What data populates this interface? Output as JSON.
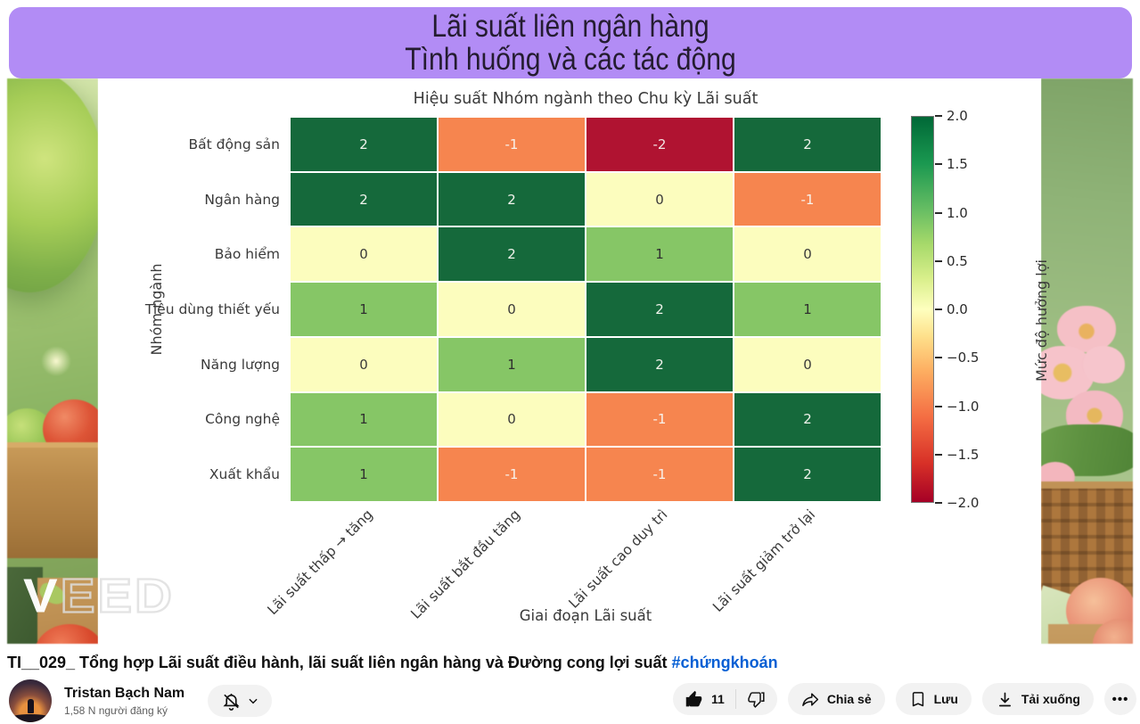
{
  "banner": {
    "line1": "Lãi suất liên ngân hàng",
    "line2": "Tình huống và các tác động",
    "bg_color": "#B28CF5"
  },
  "watermark": {
    "first": "V",
    "rest": "EED"
  },
  "chart_data": {
    "type": "heatmap",
    "title": "Hiệu suất Nhóm ngành theo Chu kỳ Lãi suất",
    "xlabel": "Giai đoạn Lãi suất",
    "ylabel": "Nhóm ngành",
    "rows": [
      "Bất động sản",
      "Ngân hàng",
      "Bảo hiểm",
      "Tiêu dùng thiết yếu",
      "Năng lượng",
      "Công nghệ",
      "Xuất khẩu"
    ],
    "columns": [
      "Lãi suất thấp → tăng",
      "Lãi suất bắt đầu tăng",
      "Lãi suất cao duy trì",
      "Lãi suất giảm trở lại"
    ],
    "values": [
      [
        2,
        -1,
        -2,
        2
      ],
      [
        2,
        2,
        0,
        -1
      ],
      [
        0,
        2,
        1,
        0
      ],
      [
        1,
        0,
        2,
        1
      ],
      [
        0,
        1,
        2,
        0
      ],
      [
        1,
        0,
        -1,
        2
      ],
      [
        1,
        -1,
        -1,
        2
      ]
    ],
    "colormap": "RdYlGn",
    "value_colors": {
      "2": "#15693B",
      "1": "#86C666",
      "0": "#FCFDBE",
      "-1": "#F6854F",
      "-2": "#B01331"
    },
    "value_text_colors": {
      "2": "#F0F3EC",
      "1": "#2F2F2F",
      "0": "#3A3A3A",
      "-1": "#F8F2EC",
      "-2": "#F2E2E2"
    },
    "colorbar": {
      "label": "Mức độ hưởng lợi",
      "min": -2.0,
      "max": 2.0,
      "ticks": [
        "2.0",
        "1.5",
        "1.0",
        "0.5",
        "0.0",
        "−0.5",
        "−1.0",
        "−1.5",
        "−2.0"
      ]
    }
  },
  "video": {
    "title_main": "TI__029_ Tổng hợp Lãi suất điều hành, lãi suất liên ngân hàng và Đường cong lợi suất ",
    "title_hashtag": "#chứngkhoán"
  },
  "channel": {
    "name": "Tristan Bạch Nam",
    "subscribers": "1,58 N người đăng ký"
  },
  "actions": {
    "like_count": "11",
    "share_label": "Chia sẻ",
    "save_label": "Lưu",
    "download_label": "Tải xuống",
    "more_label": "•••"
  }
}
